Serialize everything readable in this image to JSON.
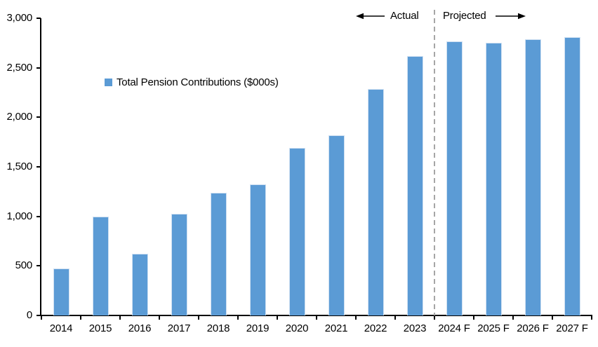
{
  "chart_data": {
    "type": "bar",
    "title": "",
    "legend": "Total Pension Contributions ($000s)",
    "categories": [
      "2014",
      "2015",
      "2016",
      "2017",
      "2018",
      "2019",
      "2020",
      "2021",
      "2022",
      "2023",
      "2024 F",
      "2025 F",
      "2026 F",
      "2027 F"
    ],
    "values": [
      475,
      1000,
      620,
      1025,
      1240,
      1325,
      1690,
      1820,
      2285,
      2620,
      2765,
      2750,
      2785,
      2810
    ],
    "xlabel": "",
    "ylabel": "",
    "ylim": [
      0,
      3000
    ],
    "ytick_step": 500,
    "ytick_labels": [
      "0",
      "500",
      "1,000",
      "1,500",
      "2,000",
      "2,500",
      "3,000"
    ],
    "grid": "off",
    "legend_position": "inside-left",
    "bar_color": "#5B9BD5",
    "divider_after_category": "2023",
    "annotations": {
      "actual": "Actual",
      "projected": "Projected"
    }
  }
}
